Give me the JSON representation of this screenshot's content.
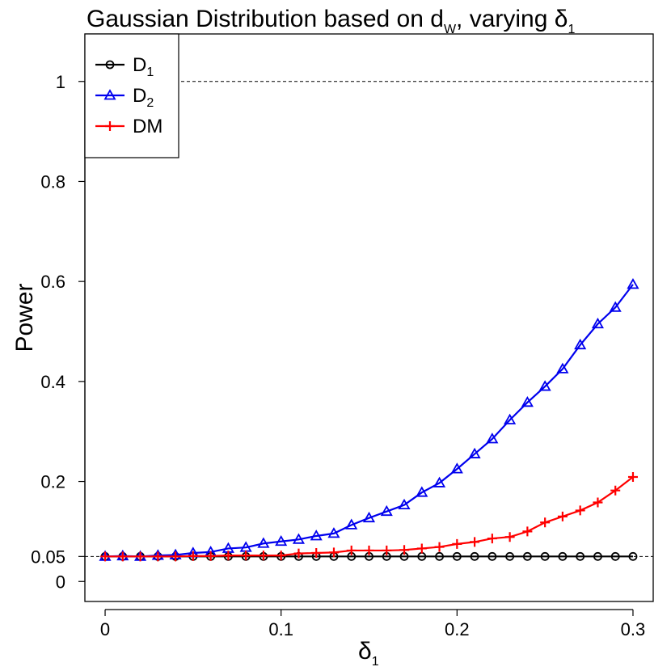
{
  "chart_data": {
    "type": "line",
    "title": "Gaussian Distribution based on d",
    "title_sub": "W",
    "title_suffix": ", varying ",
    "title_delta": "δ",
    "title_delta_sub": "1",
    "xlabel": "δ",
    "xlabel_sub": "1",
    "ylabel": "Power",
    "xlim": [
      -0.0115,
      0.3115
    ],
    "ylim": [
      -0.04,
      1.095
    ],
    "x_ticks": [
      0,
      0.1,
      0.2,
      0.3
    ],
    "x_tick_labels": [
      "0",
      "0.1",
      "0.2",
      "0.3"
    ],
    "y_ticks": [
      0,
      0.05,
      0.2,
      0.4,
      0.6,
      0.8,
      1
    ],
    "y_tick_labels": [
      "0",
      "0.05",
      "0.2",
      "0.4",
      "0.6",
      "0.8",
      "1"
    ],
    "reference_lines": [
      0.05,
      1
    ],
    "legend_position": "top-left",
    "x": [
      0,
      0.01,
      0.02,
      0.03,
      0.04,
      0.05,
      0.06,
      0.07,
      0.08,
      0.09,
      0.1,
      0.11,
      0.12,
      0.13,
      0.14,
      0.15,
      0.16,
      0.17,
      0.18,
      0.19,
      0.2,
      0.21,
      0.22,
      0.23,
      0.24,
      0.25,
      0.26,
      0.27,
      0.28,
      0.29,
      0.3
    ],
    "series": [
      {
        "name": "D",
        "name_sub": "1",
        "color": "#000000",
        "marker": "circle",
        "values": [
          0.05,
          0.05,
          0.05,
          0.05,
          0.05,
          0.05,
          0.05,
          0.05,
          0.05,
          0.05,
          0.05,
          0.05,
          0.05,
          0.05,
          0.05,
          0.05,
          0.05,
          0.05,
          0.05,
          0.05,
          0.05,
          0.05,
          0.05,
          0.05,
          0.05,
          0.05,
          0.05,
          0.05,
          0.05,
          0.05,
          0.05
        ]
      },
      {
        "name": "D",
        "name_sub": "2",
        "color": "#0000ee",
        "marker": "triangle",
        "values": [
          0.05,
          0.051,
          0.05,
          0.052,
          0.053,
          0.057,
          0.059,
          0.066,
          0.068,
          0.076,
          0.08,
          0.084,
          0.091,
          0.096,
          0.113,
          0.127,
          0.14,
          0.153,
          0.178,
          0.197,
          0.225,
          0.255,
          0.285,
          0.323,
          0.358,
          0.39,
          0.425,
          0.473,
          0.515,
          0.548,
          0.594
        ]
      },
      {
        "name": "DM",
        "name_sub": "",
        "color": "#ff0000",
        "marker": "plus",
        "values": [
          0.05,
          0.05,
          0.05,
          0.05,
          0.05,
          0.051,
          0.051,
          0.052,
          0.052,
          0.052,
          0.052,
          0.056,
          0.057,
          0.058,
          0.062,
          0.062,
          0.062,
          0.063,
          0.066,
          0.069,
          0.075,
          0.079,
          0.086,
          0.089,
          0.1,
          0.118,
          0.13,
          0.142,
          0.158,
          0.182,
          0.209
        ]
      }
    ]
  }
}
